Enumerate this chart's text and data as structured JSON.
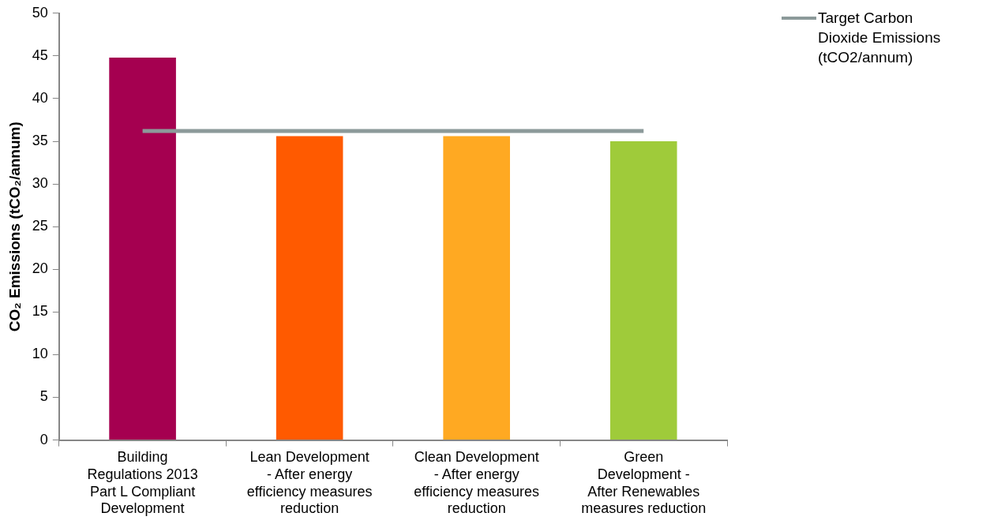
{
  "chart_data": {
    "type": "bar",
    "ylabel": "CO₂ Emissions (tCO₂/annum)",
    "categories": [
      "Building Regulations 2013 Part L Compliant Development",
      "Lean Development - After energy efficiency measures reduction",
      "Clean Development - After energy efficiency measures reduction",
      "Green Development - After Renewables measures reduction"
    ],
    "series": [
      {
        "colors": [
          "#a50050",
          "#ff5a00",
          "#ffa922",
          "#9fcb3a"
        ],
        "values": [
          44.8,
          35.6,
          35.6,
          35.0
        ]
      },
      {
        "type": "line",
        "name": "Target Carbon Dioxide Emissions (tCO2/annum)",
        "color": "#8c9a9a",
        "values": [
          36.2,
          36.2,
          36.2,
          36.2
        ]
      }
    ],
    "ylim": [
      0,
      50
    ],
    "yticks": [
      0,
      5,
      10,
      15,
      20,
      25,
      30,
      35,
      40,
      45,
      50
    ],
    "grid": false,
    "legend": "top right",
    "marker": "none"
  }
}
